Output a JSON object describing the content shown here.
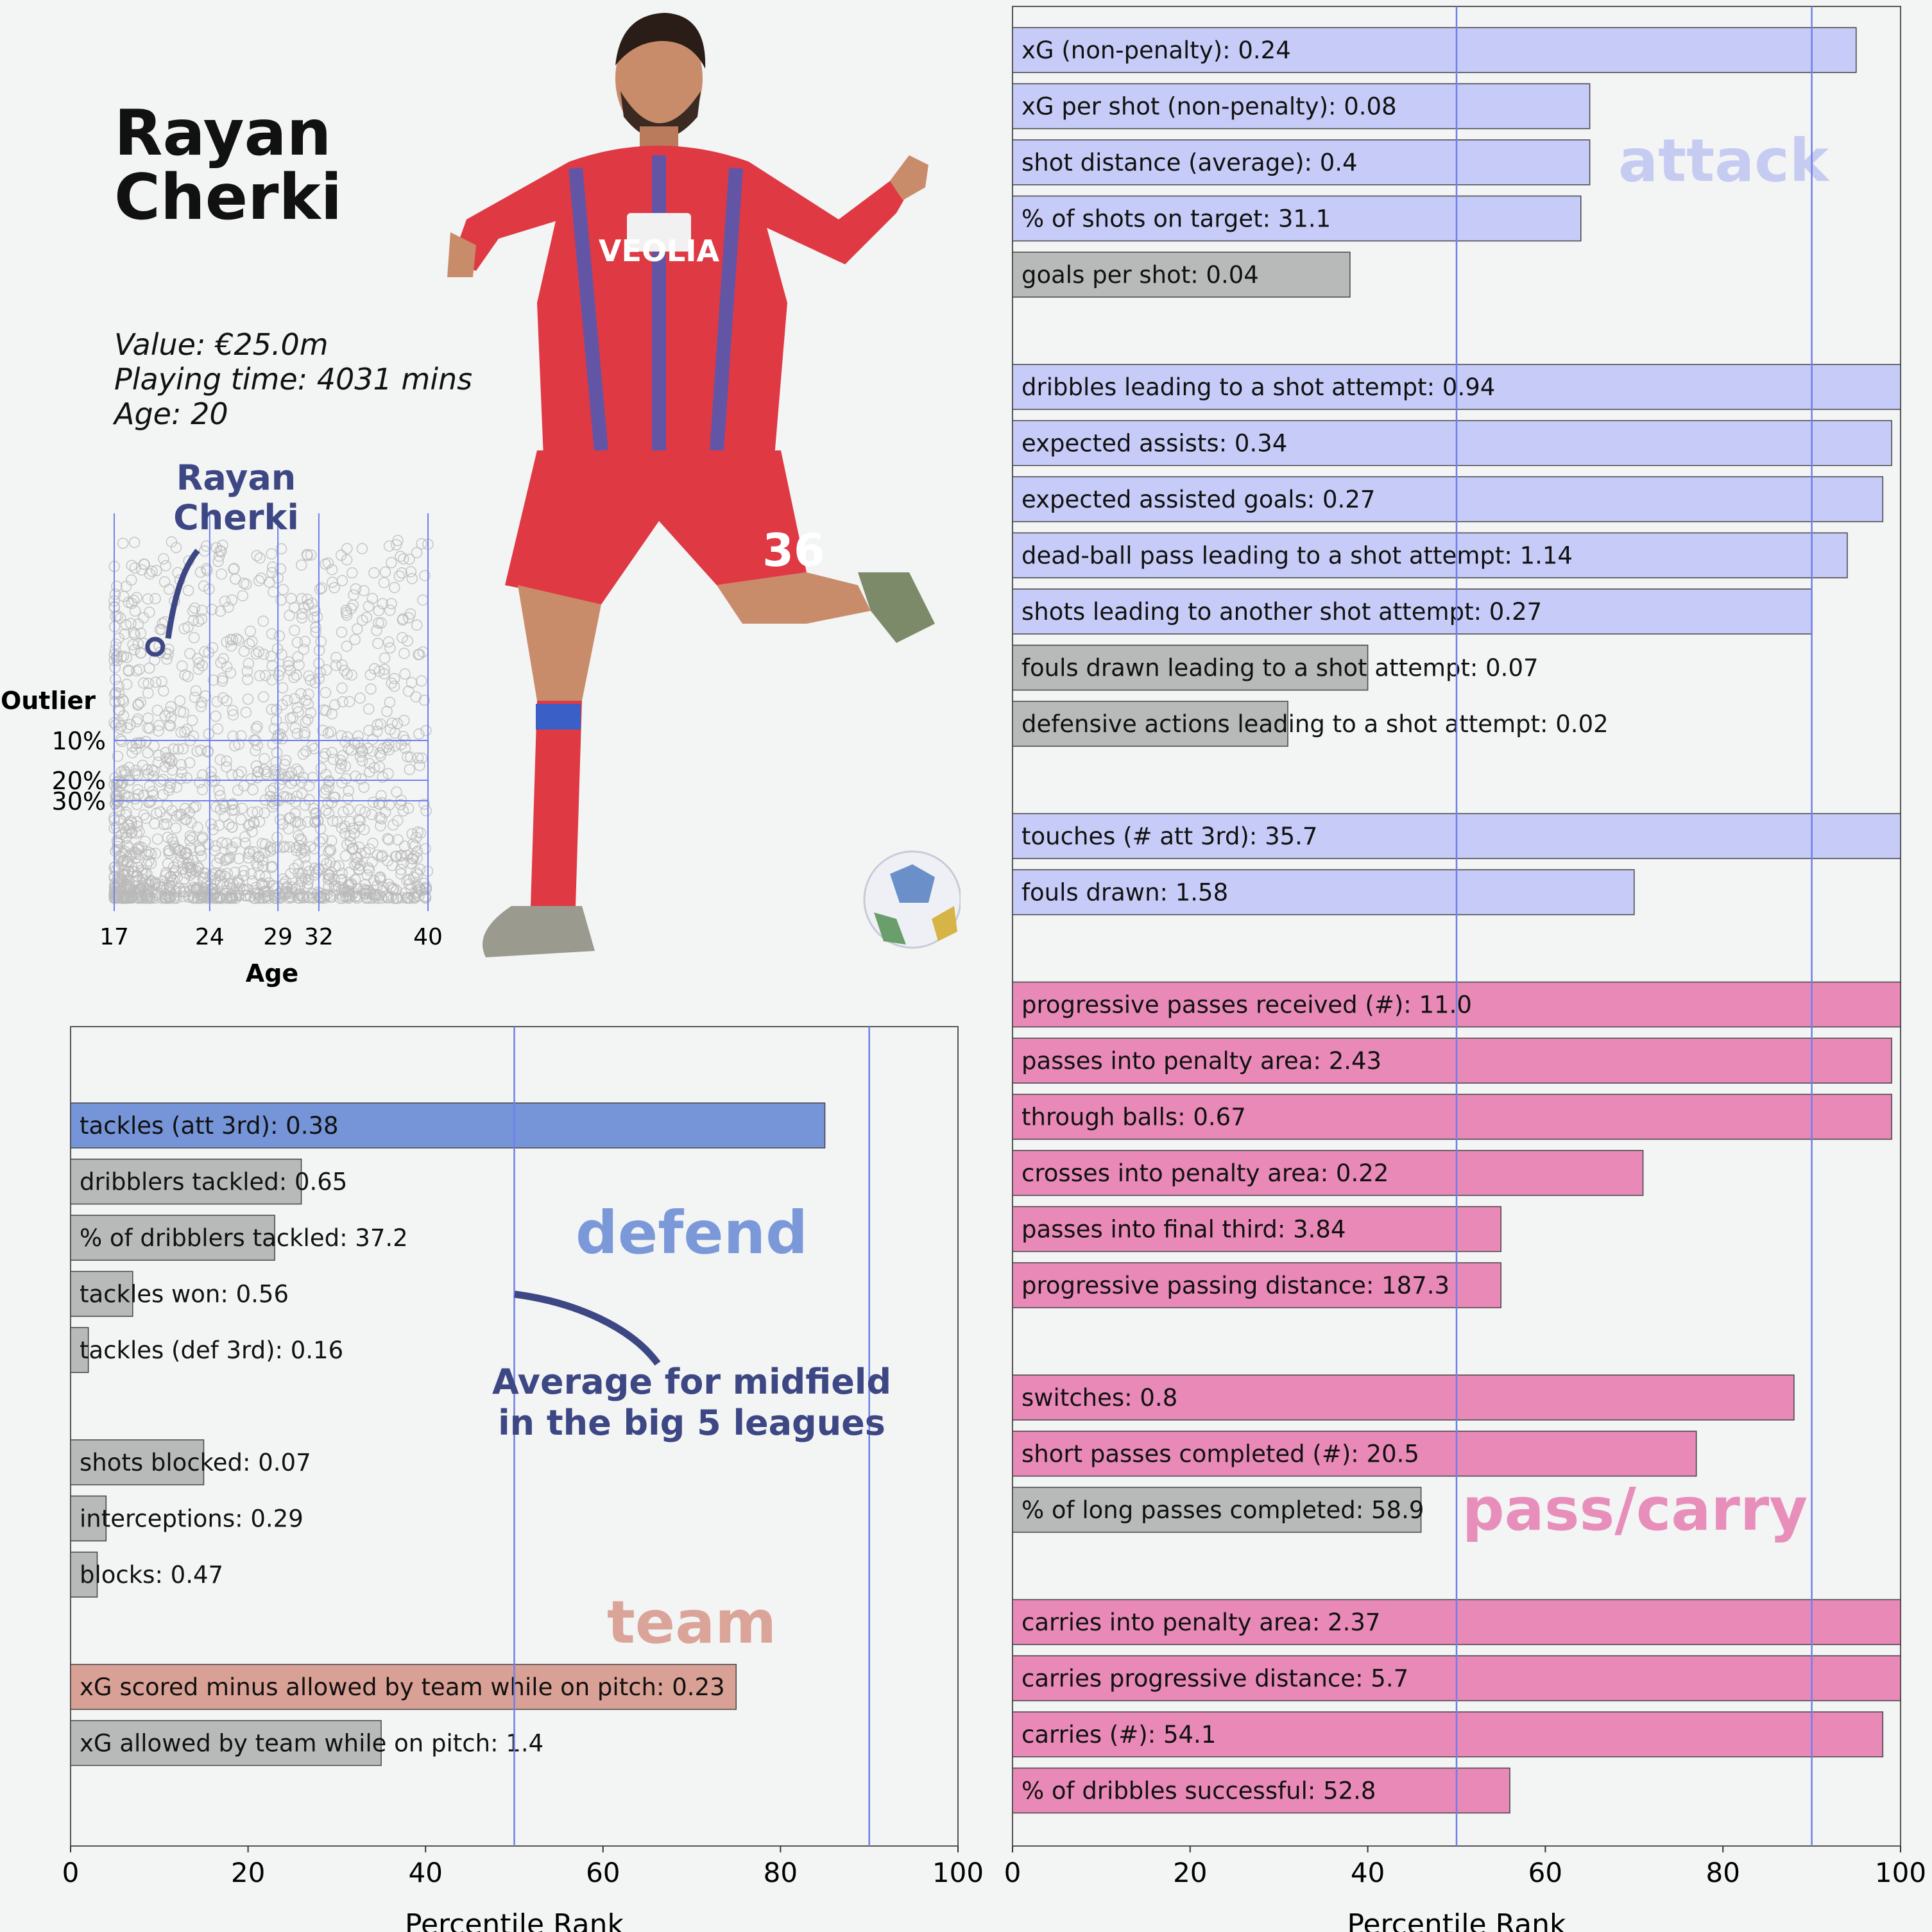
{
  "player": {
    "name_line1": "Rayan",
    "name_line2": "Cherki",
    "value": "Value: €25.0m",
    "playing_time": "Playing time: 4031 mins",
    "age": "Age: 20"
  },
  "colors": {
    "background": "#f3f4f4",
    "attack": "#c6ccf7",
    "attack_label": "#c4c9f2",
    "pass_carry": "#e889b7",
    "defend": "#7595d8",
    "team": "#d9a095",
    "grey_bar": "#b8b9b9",
    "average_line": "#6f80ea",
    "annotation": "#3c4784",
    "scatter_point": "#b9b9b9",
    "kit_red": "#df3944",
    "kit_blue": "#3a5fc6"
  },
  "scatter": {
    "highlight_label_line1": "Rayan",
    "highlight_label_line2": "Cherki",
    "outlier_title": "Outlier",
    "outlier_levels": [
      "10%",
      "20%",
      "30%"
    ],
    "age_ticks": [
      17,
      24,
      29,
      32,
      40
    ],
    "xlabel": "Age",
    "highlight_age": 20
  },
  "annotation": {
    "line1": "Average for midfield",
    "line2": "in the big 5 leagues"
  },
  "chart_data": [
    {
      "type": "bar",
      "orientation": "horizontal",
      "panel": "left",
      "xlabel": "Percentile Rank",
      "xlim": [
        0,
        100
      ],
      "xticks": [
        0,
        20,
        40,
        60,
        80,
        100
      ],
      "reference_lines": [
        50,
        90
      ],
      "groups": [
        {
          "name": "defend",
          "bars": [
            {
              "label": "tackles (att 3rd): 0.38",
              "value": 85,
              "highlight": true
            },
            {
              "label": "dribblers tackled: 0.65",
              "value": 26,
              "highlight": false
            },
            {
              "label": "% of dribblers tackled: 37.2",
              "value": 23,
              "highlight": false
            },
            {
              "label": "tackles won: 0.56",
              "value": 7,
              "highlight": false
            },
            {
              "label": "tackles (def 3rd): 0.16",
              "value": 2,
              "highlight": false
            }
          ]
        },
        {
          "name": "",
          "bars": [
            {
              "label": "shots blocked: 0.07",
              "value": 15,
              "highlight": false
            },
            {
              "label": "interceptions: 0.29",
              "value": 4,
              "highlight": false
            },
            {
              "label": "blocks: 0.47",
              "value": 3,
              "highlight": false
            }
          ]
        },
        {
          "name": "team",
          "bars": [
            {
              "label": "xG scored minus allowed by team while on pitch: 0.23",
              "value": 75,
              "highlight": true
            },
            {
              "label": "xG allowed by team while on pitch: 1.4",
              "value": 35,
              "highlight": false
            }
          ]
        }
      ]
    },
    {
      "type": "bar",
      "orientation": "horizontal",
      "panel": "right",
      "xlabel": "Percentile Rank",
      "xlim": [
        0,
        100
      ],
      "xticks": [
        0,
        20,
        40,
        60,
        80,
        100
      ],
      "reference_lines": [
        50,
        90
      ],
      "groups": [
        {
          "name": "attack",
          "bars": [
            {
              "label": "xG (non-penalty): 0.24",
              "value": 95,
              "highlight": true
            },
            {
              "label": "xG per shot (non-penalty): 0.08",
              "value": 65,
              "highlight": true
            },
            {
              "label": "shot distance (average): 0.4",
              "value": 65,
              "highlight": true
            },
            {
              "label": "% of shots on target: 31.1",
              "value": 64,
              "highlight": true
            },
            {
              "label": "goals per shot: 0.04",
              "value": 38,
              "highlight": false
            }
          ]
        },
        {
          "name": "",
          "bars": [
            {
              "label": "dribbles leading to a shot attempt: 0.94",
              "value": 100,
              "highlight": true
            },
            {
              "label": "expected assists: 0.34",
              "value": 99,
              "highlight": true
            },
            {
              "label": "expected assisted goals: 0.27",
              "value": 98,
              "highlight": true
            },
            {
              "label": "dead-ball pass leading to a shot attempt: 1.14",
              "value": 94,
              "highlight": true
            },
            {
              "label": "shots leading to another shot attempt: 0.27",
              "value": 90,
              "highlight": true
            },
            {
              "label": "fouls drawn leading to a shot attempt: 0.07",
              "value": 40,
              "highlight": false
            },
            {
              "label": "defensive actions leading to a shot attempt: 0.02",
              "value": 31,
              "highlight": false
            }
          ]
        },
        {
          "name": "",
          "bars": [
            {
              "label": "touches (# att 3rd): 35.7",
              "value": 100,
              "highlight": true
            },
            {
              "label": "fouls drawn: 1.58",
              "value": 70,
              "highlight": true
            }
          ]
        },
        {
          "name": "",
          "bars": [
            {
              "label": "progressive passes received (#): 11.0",
              "value": 100,
              "highlight": true
            },
            {
              "label": "passes into penalty area: 2.43",
              "value": 99,
              "highlight": true
            },
            {
              "label": "through balls: 0.67",
              "value": 99,
              "highlight": true
            },
            {
              "label": "crosses into penalty area: 0.22",
              "value": 71,
              "highlight": true
            },
            {
              "label": "passes into final third: 3.84",
              "value": 55,
              "highlight": true
            },
            {
              "label": "progressive passing distance: 187.3",
              "value": 55,
              "highlight": true
            }
          ]
        },
        {
          "name": "pass/carry",
          "bars": [
            {
              "label": "switches: 0.8",
              "value": 88,
              "highlight": true
            },
            {
              "label": "short passes completed (#): 20.5",
              "value": 77,
              "highlight": true
            },
            {
              "label": "% of long passes completed: 58.9",
              "value": 46,
              "highlight": false
            }
          ]
        },
        {
          "name": "",
          "bars": [
            {
              "label": "carries into penalty area: 2.37",
              "value": 100,
              "highlight": true
            },
            {
              "label": "carries progressive distance: 5.7",
              "value": 100,
              "highlight": true
            },
            {
              "label": "carries (#): 54.1",
              "value": 98,
              "highlight": true
            },
            {
              "label": "% of dribbles successful: 52.8",
              "value": 56,
              "highlight": true
            }
          ]
        }
      ]
    }
  ]
}
